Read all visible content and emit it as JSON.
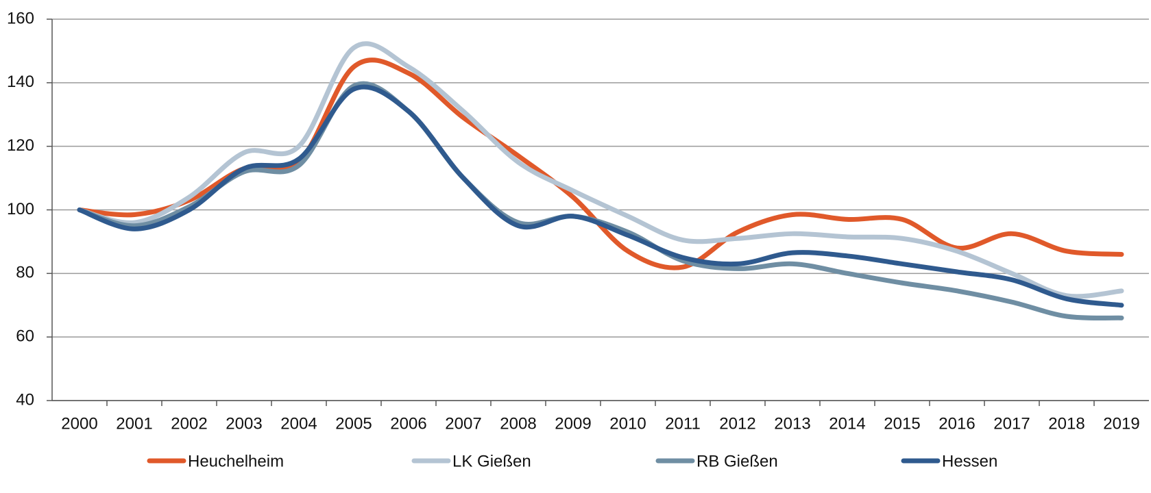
{
  "chart_data": {
    "type": "line",
    "categories": [
      "2000",
      "2001",
      "2002",
      "2003",
      "2004",
      "2005",
      "2006",
      "2007",
      "2008",
      "2009",
      "2010",
      "2011",
      "2012",
      "2013",
      "2014",
      "2015",
      "2016",
      "2017",
      "2018",
      "2019"
    ],
    "series": [
      {
        "name": "Heuchelheim",
        "color": "#e0592a",
        "values": [
          100,
          98.5,
          103,
          113,
          115,
          145,
          143,
          129,
          117,
          104,
          87,
          82,
          93,
          98.5,
          97,
          97,
          88,
          92.5,
          87,
          86
        ]
      },
      {
        "name": "LK Gießen",
        "color": "#b4c4d3",
        "values": [
          100,
          96,
          104,
          118,
          120,
          151,
          145,
          131,
          115,
          106,
          98,
          90.5,
          91,
          92.5,
          91.5,
          91,
          87,
          80,
          73,
          74.5
        ]
      },
      {
        "name": "RB Gießen",
        "color": "#6f8ea3",
        "values": [
          100,
          95,
          101,
          112,
          114,
          139,
          131,
          110,
          96,
          98,
          93,
          84,
          81.5,
          83,
          80,
          77,
          74.5,
          71,
          66.5,
          66
        ]
      },
      {
        "name": "Hessen",
        "color": "#2f5a8e",
        "values": [
          100,
          94,
          100,
          113,
          116,
          138,
          131,
          110,
          95,
          98,
          92,
          85,
          83,
          86.5,
          85.5,
          83,
          80.5,
          78,
          72,
          70
        ]
      }
    ],
    "ylim": [
      40,
      160
    ],
    "yticks": [
      40,
      60,
      80,
      100,
      120,
      140,
      160
    ],
    "grid": true,
    "legend": "bottom"
  }
}
